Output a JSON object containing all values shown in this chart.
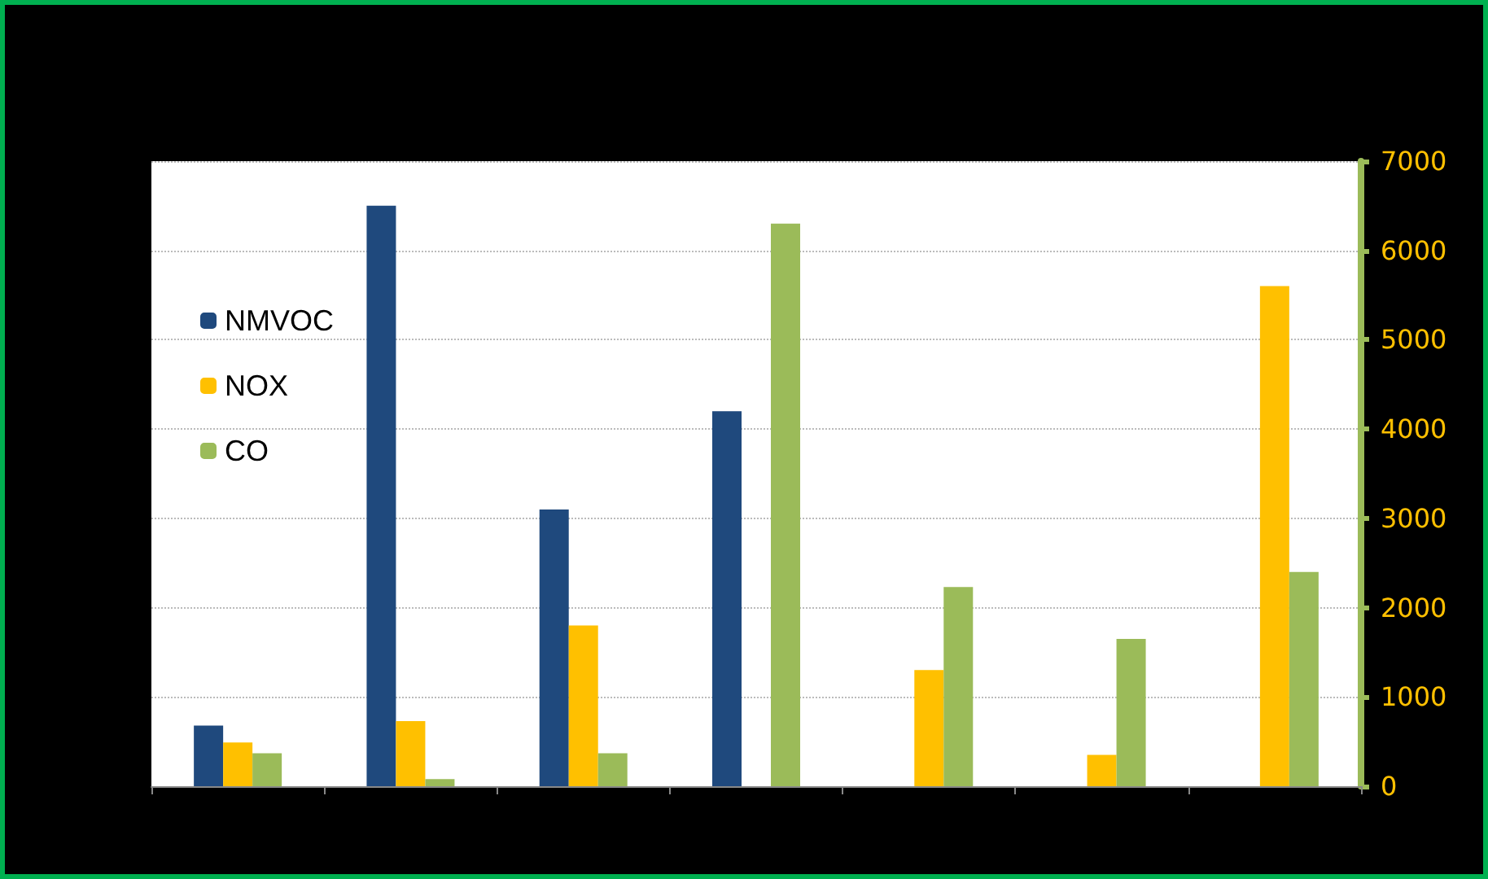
{
  "chart_data": {
    "type": "bar",
    "categories": [
      null,
      null,
      null,
      null,
      null,
      null,
      null
    ],
    "series": [
      {
        "name": "NMVOC",
        "color": "#1f497d",
        "values": [
          680,
          6500,
          3100,
          4200,
          null,
          null,
          null
        ]
      },
      {
        "name": "NOX",
        "color": "#ffc000",
        "values": [
          490,
          730,
          1800,
          null,
          1300,
          350,
          5600
        ]
      },
      {
        "name": "CO",
        "color": "#9bbb59",
        "values": [
          370,
          80,
          370,
          6300,
          2230,
          1650,
          2400
        ]
      }
    ],
    "ylim": [
      0,
      7000
    ],
    "yticks": [
      0,
      1000,
      2000,
      3000,
      4000,
      5000,
      6000,
      7000
    ],
    "tick_labels": "y",
    "grid": true,
    "legend": "left"
  }
}
